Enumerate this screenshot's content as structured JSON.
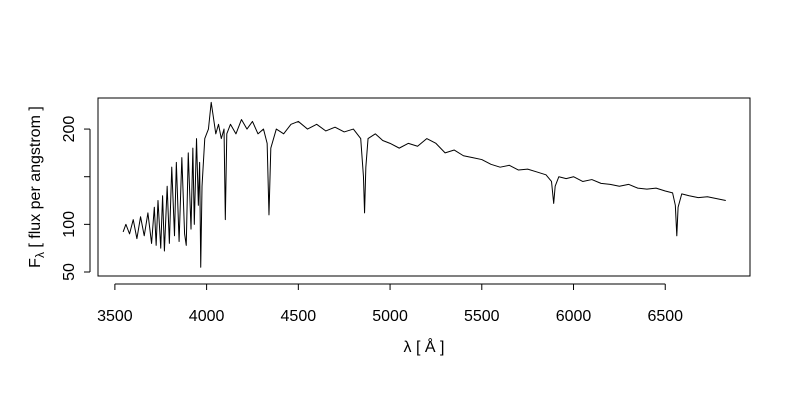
{
  "chart_data": {
    "type": "line",
    "xlabel_parts": [
      "λ [ Å ]"
    ],
    "ylabel_parts": [
      "F",
      "λ",
      " [ flux per angstrom ]"
    ],
    "x": [
      3545,
      3560,
      3580,
      3600,
      3620,
      3640,
      3660,
      3680,
      3700,
      3715,
      3725,
      3735,
      3750,
      3760,
      3770,
      3785,
      3797,
      3810,
      3825,
      3835,
      3850,
      3865,
      3880,
      3889,
      3900,
      3915,
      3925,
      3933,
      3945,
      3955,
      3962,
      3968,
      3975,
      3990,
      4010,
      4025,
      4035,
      4050,
      4065,
      4080,
      4095,
      4102,
      4110,
      4130,
      4160,
      4190,
      4220,
      4250,
      4280,
      4310,
      4330,
      4340,
      4350,
      4380,
      4420,
      4460,
      4500,
      4550,
      4600,
      4650,
      4700,
      4750,
      4800,
      4840,
      4855,
      4861,
      4868,
      4880,
      4920,
      4960,
      5000,
      5050,
      5100,
      5150,
      5200,
      5250,
      5300,
      5350,
      5400,
      5450,
      5500,
      5550,
      5600,
      5650,
      5700,
      5750,
      5800,
      5850,
      5880,
      5892,
      5900,
      5920,
      5960,
      6000,
      6050,
      6100,
      6150,
      6200,
      6250,
      6300,
      6350,
      6400,
      6450,
      6500,
      6540,
      6555,
      6563,
      6570,
      6590,
      6630,
      6680,
      6730,
      6780,
      6830
    ],
    "series": [
      {
        "color": "#000000",
        "values": [
          92,
          100,
          90,
          105,
          85,
          108,
          88,
          112,
          80,
          118,
          78,
          125,
          75,
          130,
          72,
          140,
          80,
          160,
          88,
          165,
          82,
          170,
          90,
          78,
          175,
          95,
          180,
          100,
          190,
          120,
          165,
          55,
          140,
          190,
          200,
          228,
          215,
          195,
          205,
          190,
          200,
          105,
          195,
          205,
          195,
          210,
          200,
          208,
          195,
          200,
          185,
          110,
          180,
          200,
          195,
          205,
          208,
          200,
          205,
          198,
          202,
          197,
          200,
          190,
          150,
          112,
          160,
          190,
          195,
          188,
          185,
          180,
          185,
          182,
          190,
          185,
          175,
          178,
          172,
          170,
          168,
          163,
          160,
          162,
          157,
          158,
          155,
          152,
          145,
          122,
          140,
          150,
          148,
          150,
          145,
          147,
          143,
          142,
          140,
          142,
          138,
          137,
          138,
          135,
          133,
          120,
          88,
          118,
          132,
          130,
          128,
          129,
          127,
          125
        ]
      }
    ],
    "xlim": [
      3408,
      6962
    ],
    "ylim": [
      45.8,
      232.6
    ],
    "xticks": [
      3500,
      4000,
      4500,
      5000,
      5500,
      6000,
      6500
    ],
    "yticks": [
      50,
      100,
      {
        "value": 150,
        "label": null
      },
      200
    ]
  }
}
